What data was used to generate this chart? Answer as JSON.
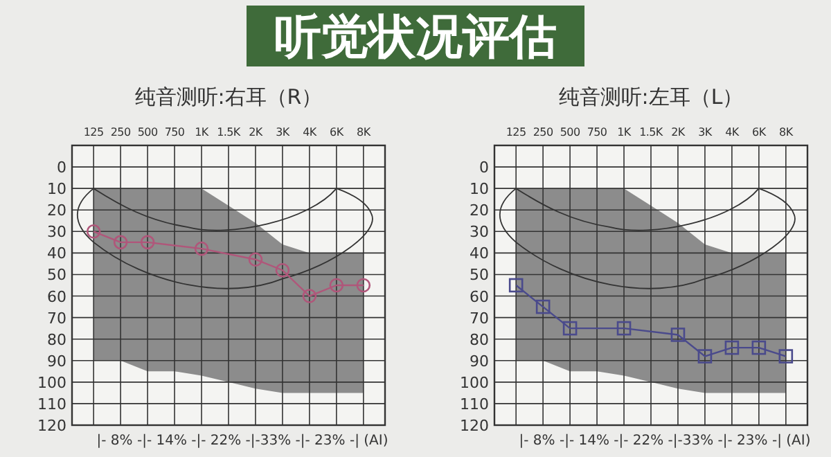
{
  "chart_data": [
    {
      "type": "other",
      "title": "听觉状况评估"
    },
    {
      "type": "line",
      "title": "纯音测听:右耳（R）",
      "categories": [
        "125",
        "250",
        "500",
        "750",
        "1K",
        "1.5K",
        "2K",
        "3K",
        "4K",
        "6K",
        "8K"
      ],
      "ylim": [
        120,
        -10
      ],
      "yticks": [
        0,
        10,
        20,
        30,
        40,
        50,
        60,
        70,
        80,
        90,
        100,
        110,
        120
      ],
      "grid": true,
      "annotations": [
        "|- 8% -|- 14% -|- 22% -|-33% -|- 23% -|  (AI)"
      ],
      "series": [
        {
          "type": "area",
          "color": "#8c8c8c",
          "values": [
            90,
            90,
            95,
            95,
            97,
            100,
            103,
            105,
            105,
            105,
            105
          ]
        },
        {
          "type": "area",
          "color": "#f4f4f2",
          "values": [
            10,
            10,
            10,
            10,
            10,
            18,
            26,
            36,
            40,
            40,
            40
          ]
        },
        {
          "type": "line",
          "color": "#b0567a",
          "marker": "circle",
          "values": [
            30,
            35,
            35,
            null,
            38,
            null,
            43,
            48,
            60,
            55,
            55
          ]
        }
      ]
    },
    {
      "type": "line",
      "title": "纯音测听:左耳（L）",
      "categories": [
        "125",
        "250",
        "500",
        "750",
        "1K",
        "1.5K",
        "2K",
        "3K",
        "4K",
        "6K",
        "8K"
      ],
      "ylim": [
        120,
        -10
      ],
      "yticks": [
        0,
        10,
        20,
        30,
        40,
        50,
        60,
        70,
        80,
        90,
        100,
        110,
        120
      ],
      "grid": true,
      "annotations": [
        "|- 8% -|- 14% -|- 22% -|-33% -|- 23% -|  (AI)"
      ],
      "series": [
        {
          "type": "area",
          "color": "#8c8c8c",
          "values": [
            90,
            90,
            95,
            95,
            97,
            100,
            103,
            105,
            105,
            105,
            105
          ]
        },
        {
          "type": "area",
          "color": "#f4f4f2",
          "values": [
            10,
            10,
            10,
            10,
            10,
            18,
            26,
            36,
            40,
            40,
            40
          ]
        },
        {
          "type": "line",
          "color": "#4a4a8c",
          "marker": "square",
          "values": [
            55,
            65,
            75,
            null,
            75,
            null,
            78,
            88,
            84,
            84,
            88
          ]
        }
      ]
    }
  ]
}
